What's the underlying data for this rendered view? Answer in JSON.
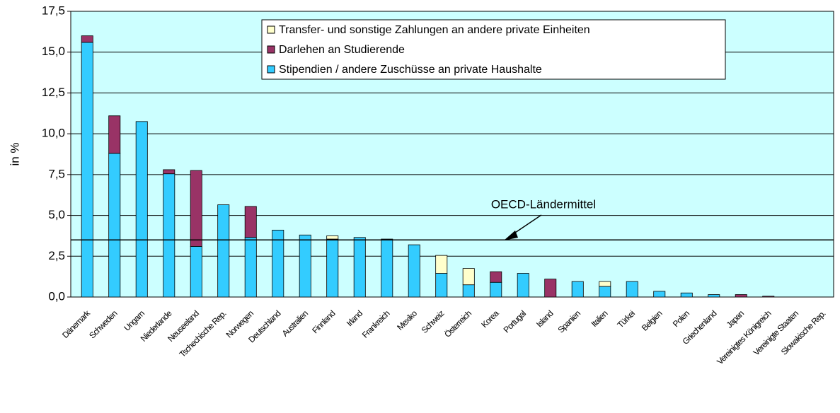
{
  "chart_data": {
    "type": "stacked_bar",
    "y_label": "in %",
    "annotation": "OECD-Ländermittel",
    "reference_value": 3.5,
    "categories": [
      "Dänemark",
      "Schweden",
      "Ungarn",
      "Niederlande",
      "Neuseeland",
      "Tschechische Rep.",
      "Norwegen",
      "Deutschland",
      "Australien",
      "Finnland",
      "Irland",
      "Frankreich",
      "Mexiko",
      "Schweiz",
      "Österreich",
      "Korea",
      "Portugal",
      "Island",
      "Spanien",
      "Italien",
      "Türkei",
      "Belgien",
      "Polen",
      "Griechenland",
      "Japan",
      "Vereinigtes Königreich",
      "Vereinigte Staaten",
      "Slowakische Rep."
    ],
    "series": [
      {
        "name": "Stipendien / andere Zuschüsse an private Haushalte",
        "color": "#33ccff",
        "values": [
          15.6,
          8.8,
          10.75,
          7.55,
          3.1,
          5.65,
          3.65,
          4.1,
          3.8,
          3.55,
          3.65,
          3.55,
          3.2,
          1.45,
          0.75,
          0.9,
          1.45,
          0,
          0.95,
          0.65,
          0.95,
          0.35,
          0.25,
          0.15,
          0,
          0,
          0,
          0
        ]
      },
      {
        "name": "Darlehen an Studierende",
        "color": "#993366",
        "values": [
          0.4,
          2.3,
          0,
          0.25,
          4.65,
          0,
          1.9,
          0,
          0,
          0,
          0,
          0,
          0,
          0,
          0,
          0.65,
          0,
          1.1,
          0,
          0,
          0,
          0,
          0,
          0,
          0.15,
          0.05,
          0,
          0
        ]
      },
      {
        "name": "Transfer- und sonstige Zahlungen an andere private Einheiten",
        "color": "#ffffcc",
        "values": [
          0,
          0,
          0,
          0,
          0,
          0,
          0,
          0,
          0,
          0.2,
          0,
          0,
          0,
          1.1,
          1.0,
          0,
          0,
          0,
          0,
          0.3,
          0,
          0,
          0,
          0,
          0,
          0,
          0,
          0
        ]
      }
    ],
    "ylim": [
      0,
      17.5
    ],
    "yticks": [
      {
        "value": 0,
        "label": "0,0"
      },
      {
        "value": 2.5,
        "label": "2,5"
      },
      {
        "value": 5,
        "label": "5,0"
      },
      {
        "value": 7.5,
        "label": "7,5"
      },
      {
        "value": 10,
        "label": "10,0"
      },
      {
        "value": 12.5,
        "label": "12,5"
      },
      {
        "value": 15,
        "label": "15,0"
      },
      {
        "value": 17.5,
        "label": "17,5"
      }
    ],
    "grid": true
  }
}
